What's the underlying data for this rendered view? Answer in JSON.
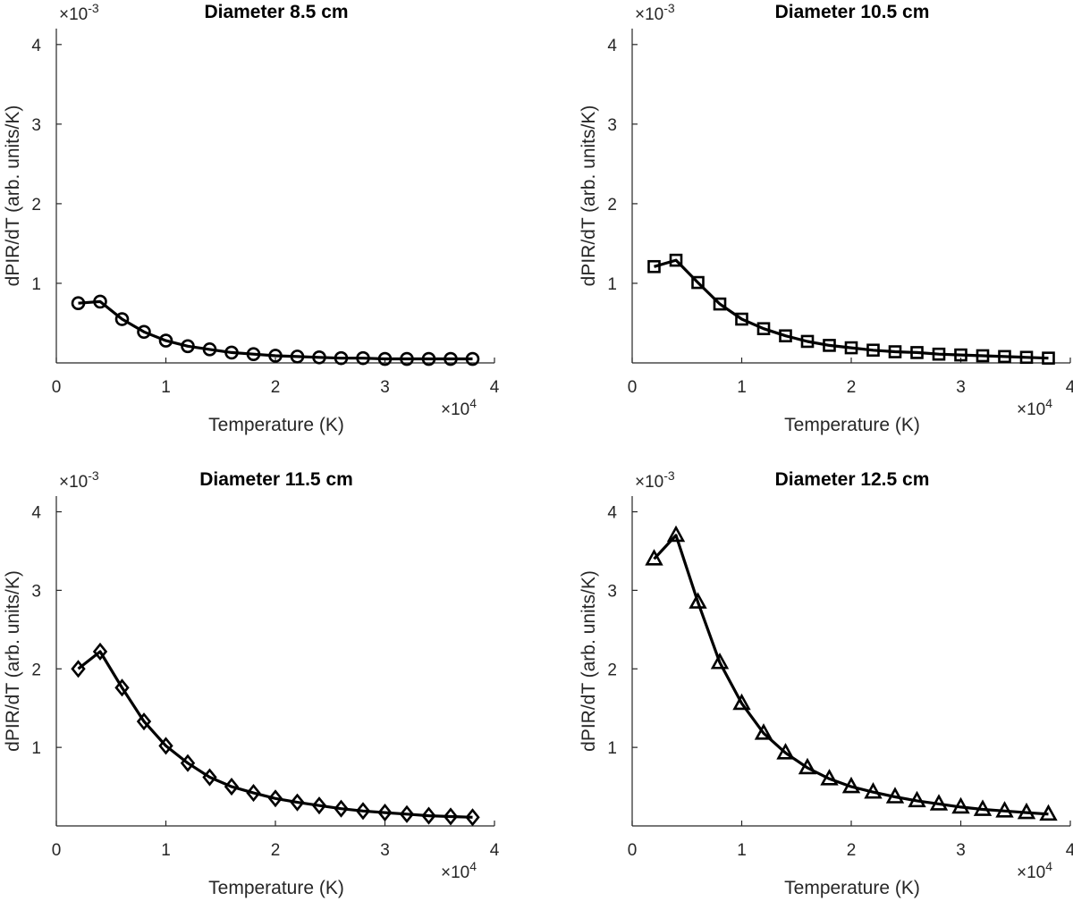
{
  "chart_data": [
    {
      "type": "line",
      "title": "Diameter 8.5 cm",
      "xlabel": "Temperature (K)",
      "ylabel": "dPIR/dT (arb. units/K)",
      "x_multiplier": "×10",
      "x_multiplier_exp": "4",
      "y_multiplier": "×10",
      "y_multiplier_exp": "-3",
      "xlim": [
        0,
        40000
      ],
      "ylim": [
        0,
        0.0042
      ],
      "xticks": [
        0,
        10000,
        20000,
        30000,
        40000
      ],
      "xtick_labels": [
        "0",
        "1",
        "2",
        "3",
        "4"
      ],
      "yticks": [
        0.001,
        0.002,
        0.003,
        0.004
      ],
      "ytick_labels": [
        "1",
        "2",
        "3",
        "4"
      ],
      "marker": "circle",
      "x": [
        2000,
        4000,
        6000,
        8000,
        10000,
        12000,
        14000,
        16000,
        18000,
        20000,
        22000,
        24000,
        26000,
        28000,
        30000,
        32000,
        34000,
        36000,
        38000
      ],
      "y": [
        0.00075,
        0.00077,
        0.00055,
        0.00039,
        0.00028,
        0.00021,
        0.00017,
        0.00013,
        0.00011,
        9e-05,
        8e-05,
        7e-05,
        6e-05,
        6e-05,
        5e-05,
        5e-05,
        5e-05,
        5e-05,
        5e-05
      ]
    },
    {
      "type": "line",
      "title": "Diameter 10.5 cm",
      "xlabel": "Temperature (K)",
      "ylabel": "dPIR/dT (arb. units/K)",
      "x_multiplier": "×10",
      "x_multiplier_exp": "4",
      "y_multiplier": "×10",
      "y_multiplier_exp": "-3",
      "xlim": [
        0,
        40000
      ],
      "ylim": [
        0,
        0.0042
      ],
      "xticks": [
        0,
        10000,
        20000,
        30000,
        40000
      ],
      "xtick_labels": [
        "0",
        "1",
        "2",
        "3",
        "4"
      ],
      "yticks": [
        0.001,
        0.002,
        0.003,
        0.004
      ],
      "ytick_labels": [
        "1",
        "2",
        "3",
        "4"
      ],
      "marker": "square",
      "x": [
        2000,
        4000,
        6000,
        8000,
        10000,
        12000,
        14000,
        16000,
        18000,
        20000,
        22000,
        24000,
        26000,
        28000,
        30000,
        32000,
        34000,
        36000,
        38000
      ],
      "y": [
        0.00121,
        0.00129,
        0.00101,
        0.00074,
        0.00055,
        0.00043,
        0.00034,
        0.00027,
        0.00022,
        0.00019,
        0.00016,
        0.00014,
        0.00013,
        0.00011,
        0.0001,
        9e-05,
        8e-05,
        7e-05,
        6e-05
      ]
    },
    {
      "type": "line",
      "title": "Diameter 11.5 cm",
      "xlabel": "Temperature (K)",
      "ylabel": "dPIR/dT (arb. units/K)",
      "x_multiplier": "×10",
      "x_multiplier_exp": "4",
      "y_multiplier": "×10",
      "y_multiplier_exp": "-3",
      "xlim": [
        0,
        40000
      ],
      "ylim": [
        0,
        0.0042
      ],
      "xticks": [
        0,
        10000,
        20000,
        30000,
        40000
      ],
      "xtick_labels": [
        "0",
        "1",
        "2",
        "3",
        "4"
      ],
      "yticks": [
        0.001,
        0.002,
        0.003,
        0.004
      ],
      "ytick_labels": [
        "1",
        "2",
        "3",
        "4"
      ],
      "marker": "diamond",
      "x": [
        2000,
        4000,
        6000,
        8000,
        10000,
        12000,
        14000,
        16000,
        18000,
        20000,
        22000,
        24000,
        26000,
        28000,
        30000,
        32000,
        34000,
        36000,
        38000
      ],
      "y": [
        0.002,
        0.00222,
        0.00176,
        0.00133,
        0.00102,
        0.0008,
        0.00062,
        0.0005,
        0.00042,
        0.00035,
        0.0003,
        0.00026,
        0.00022,
        0.00019,
        0.00017,
        0.00015,
        0.00013,
        0.00012,
        0.00011
      ]
    },
    {
      "type": "line",
      "title": "Diameter 12.5 cm",
      "xlabel": "Temperature (K)",
      "ylabel": "dPIR/dT (arb. units/K)",
      "x_multiplier": "×10",
      "x_multiplier_exp": "4",
      "y_multiplier": "×10",
      "y_multiplier_exp": "-3",
      "xlim": [
        0,
        40000
      ],
      "ylim": [
        0,
        0.0042
      ],
      "xticks": [
        0,
        10000,
        20000,
        30000,
        40000
      ],
      "xtick_labels": [
        "0",
        "1",
        "2",
        "3",
        "4"
      ],
      "yticks": [
        0.001,
        0.002,
        0.003,
        0.004
      ],
      "ytick_labels": [
        "1",
        "2",
        "3",
        "4"
      ],
      "marker": "triangle",
      "x": [
        2000,
        4000,
        6000,
        8000,
        10000,
        12000,
        14000,
        16000,
        18000,
        20000,
        22000,
        24000,
        26000,
        28000,
        30000,
        32000,
        34000,
        36000,
        38000
      ],
      "y": [
        0.0034,
        0.0037,
        0.00285,
        0.00208,
        0.00156,
        0.00118,
        0.00093,
        0.00074,
        0.0006,
        0.0005,
        0.00043,
        0.00037,
        0.00032,
        0.00028,
        0.00024,
        0.00021,
        0.00019,
        0.00017,
        0.00015
      ]
    }
  ]
}
